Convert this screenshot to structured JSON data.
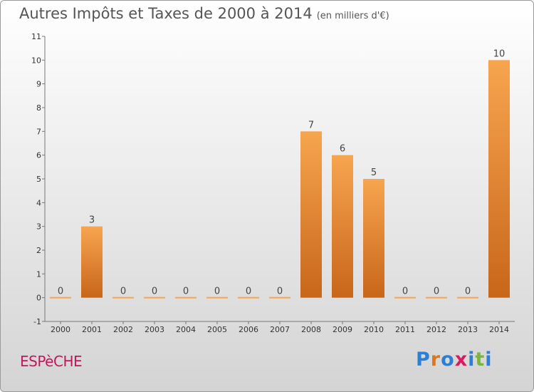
{
  "title": {
    "main": "Autres Impôts et Taxes de 2000 à 2014",
    "unit": "(en milliers d'€)"
  },
  "commune": "ESPèCHE",
  "logo": {
    "letters": [
      "P",
      "r",
      "o",
      "x",
      "i",
      "t",
      "i"
    ],
    "colors": [
      "#2b7fd6",
      "#e0761c",
      "#2b7fd6",
      "#d81b60",
      "#2b7fd6",
      "#7cb342",
      "#2b7fd6"
    ]
  },
  "chart_data": {
    "type": "bar",
    "categories": [
      "2000",
      "2001",
      "2002",
      "2003",
      "2004",
      "2005",
      "2006",
      "2007",
      "2008",
      "2009",
      "2010",
      "2011",
      "2012",
      "2013",
      "2014"
    ],
    "values": [
      0,
      3,
      0,
      0,
      0,
      0,
      0,
      0,
      7,
      6,
      5,
      0,
      0,
      0,
      10
    ],
    "value_labels": [
      "0",
      "3",
      "0",
      "0",
      "0",
      "0",
      "0",
      "0",
      "7",
      "6",
      "5",
      "0",
      "0",
      "0",
      "10"
    ],
    "y_ticks": [
      "-1",
      "0",
      "1",
      "2",
      "3",
      "4",
      "5",
      "6",
      "7",
      "8",
      "9",
      "10",
      "11"
    ],
    "ylim": [
      -1,
      11
    ],
    "grid": false,
    "colors": {
      "bar_top": "#f7a54f",
      "bar_bottom": "#c8661a",
      "axis": "#777777"
    }
  }
}
